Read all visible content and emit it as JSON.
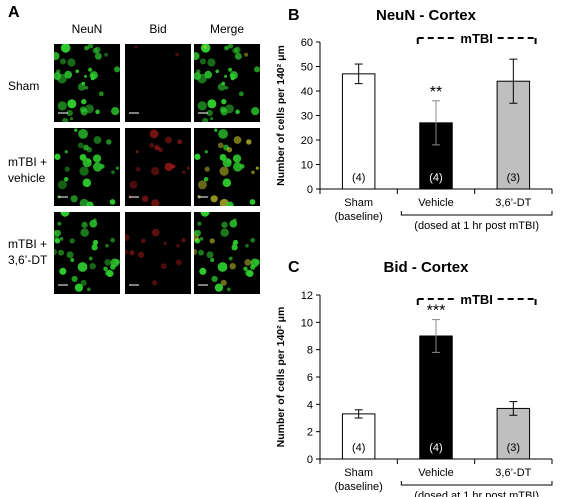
{
  "panel_a": {
    "letter": "A",
    "columns": [
      "NeuN",
      "Bid",
      "Merge"
    ],
    "rows": [
      {
        "label_lines": [
          "Sham"
        ],
        "neuron_density": 0.9,
        "bid_density": 0.05,
        "colocalized": 0.05
      },
      {
        "label_lines": [
          "mTBI +",
          "vehicle"
        ],
        "neuron_density": 0.55,
        "bid_density": 0.7,
        "colocalized": 0.5
      },
      {
        "label_lines": [
          "mTBI +",
          "3,6’-DT"
        ],
        "neuron_density": 0.85,
        "bid_density": 0.3,
        "colocalized": 0.2
      }
    ],
    "colors": {
      "neun": "#2ecc2e",
      "bid": "#cc2020",
      "merge": "#d8d830"
    }
  },
  "chart_data": [
    {
      "letter": "B",
      "type": "bar",
      "title": "NeuN - Cortex",
      "ylabel": "Number of cells  per 140² μm",
      "ylim": [
        0,
        60
      ],
      "yticks": [
        0,
        10,
        20,
        30,
        40,
        50,
        60
      ],
      "categories": [
        "Sham",
        "Vehicle",
        "3,6’-DT"
      ],
      "sublabel": "(baseline)",
      "group_note": "(dosed at 1 hr post mTBI)",
      "bracket_label": "mTBI",
      "values": [
        47,
        27,
        44
      ],
      "errors": [
        4,
        9,
        9
      ],
      "n_labels": [
        "(4)",
        "(4)",
        "(3)"
      ],
      "significance": [
        "",
        "**",
        ""
      ],
      "bar_colors": [
        "#ffffff",
        "#000000",
        "#bfbfbf"
      ]
    },
    {
      "letter": "C",
      "type": "bar",
      "title": "Bid - Cortex",
      "ylabel": "Number of cells  per 140² μm",
      "ylim": [
        0,
        12
      ],
      "yticks": [
        0,
        2,
        4,
        6,
        8,
        10,
        12
      ],
      "categories": [
        "Sham",
        "Vehicle",
        "3,6’-DT"
      ],
      "sublabel": "(baseline)",
      "group_note": "(dosed at 1 hr post mTBI)",
      "bracket_label": "mTBI",
      "values": [
        3.3,
        9.0,
        3.7
      ],
      "errors": [
        0.3,
        1.2,
        0.5
      ],
      "n_labels": [
        "(4)",
        "(4)",
        "(3)"
      ],
      "significance": [
        "",
        "***",
        ""
      ],
      "bar_colors": [
        "#ffffff",
        "#000000",
        "#bfbfbf"
      ]
    }
  ]
}
